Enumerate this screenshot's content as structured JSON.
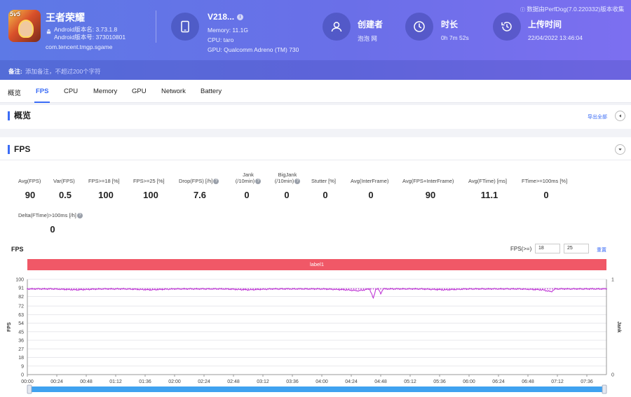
{
  "app": {
    "name": "王者荣耀",
    "version_name": "Android版本名: 3.73.1.8",
    "version_code": "Android版本号: 373010801",
    "package": "com.tencent.tmgp.sgame",
    "icon_badge": "5v5"
  },
  "device": {
    "name": "V218...",
    "memory": "Memory: 11.1G",
    "cpu": "CPU: taro",
    "gpu": "GPU: Qualcomm Adreno (TM) 730"
  },
  "creator": {
    "title": "创建者",
    "value": "泡泡 网"
  },
  "duration": {
    "title": "时长",
    "value": "0h 7m 52s"
  },
  "upload": {
    "title": "上传时间",
    "value": "22/04/2022 13:46:04"
  },
  "source_note": "数据由PerfDog(7.0.220332)版本收集",
  "note": {
    "label": "备注:",
    "placeholder": "添加备注，不超过200个字符"
  },
  "tabs": [
    {
      "label": "概览"
    },
    {
      "label": "FPS"
    },
    {
      "label": "CPU"
    },
    {
      "label": "Memory"
    },
    {
      "label": "GPU"
    },
    {
      "label": "Network"
    },
    {
      "label": "Battery"
    }
  ],
  "active_tab": "FPS",
  "overview": {
    "title": "概览",
    "export": "导出全部"
  },
  "fps_section": {
    "title": "FPS",
    "metrics": [
      {
        "label": "Avg(FPS)",
        "value": "90"
      },
      {
        "label": "Var(FPS)",
        "value": "0.5"
      },
      {
        "label": "FPS>=18 [%]",
        "value": "100"
      },
      {
        "label": "FPS>=25 [%]",
        "value": "100"
      },
      {
        "label": "Drop(FPS) [/h]",
        "value": "7.6"
      },
      {
        "label": "Jank\n(/10min)",
        "value": "0"
      },
      {
        "label": "BigJank\n(/10min)",
        "value": "0"
      },
      {
        "label": "Stutter [%]",
        "value": "0"
      },
      {
        "label": "Avg(InterFrame)",
        "value": "0"
      },
      {
        "label": "Avg(FPS+InterFrame)",
        "value": "90"
      },
      {
        "label": "Avg(FTime) [ms]",
        "value": "11.1"
      },
      {
        "label": "FTime>=100ms [%]",
        "value": "0"
      },
      {
        "label": "Delta(FTime)>100ms [/h]",
        "value": "0"
      }
    ]
  },
  "chart_header": {
    "title": "FPS",
    "threshold_label": "FPS(>=)",
    "threshold_1": "18",
    "threshold_2": "25",
    "reset": "重置",
    "label_band": "label1"
  },
  "chart_data": {
    "type": "line",
    "ylabel": "FPS",
    "y2label": "Jank",
    "ylim": [
      0,
      100
    ],
    "y_ticks": [
      0,
      9,
      18,
      27,
      36,
      45,
      54,
      63,
      72,
      82,
      91,
      100
    ],
    "y2lim": [
      0,
      1
    ],
    "y2_ticks": [
      0,
      1
    ],
    "x_ticks": [
      "00:00",
      "00:24",
      "00:48",
      "01:12",
      "01:36",
      "02:00",
      "02:24",
      "02:48",
      "03:12",
      "03:36",
      "04:00",
      "04:24",
      "04:48",
      "05:12",
      "05:36",
      "06:00",
      "06:24",
      "06:48",
      "07:12",
      "07:36"
    ],
    "x_range_seconds": [
      0,
      472
    ],
    "series": [
      {
        "color": "#c03ad6",
        "baseline": 90,
        "points": [
          [
            0,
            90
          ],
          [
            20,
            90
          ],
          [
            40,
            89
          ],
          [
            60,
            90
          ],
          [
            80,
            90
          ],
          [
            100,
            89
          ],
          [
            120,
            90
          ],
          [
            140,
            90
          ],
          [
            160,
            90
          ],
          [
            180,
            89
          ],
          [
            200,
            90
          ],
          [
            220,
            90
          ],
          [
            240,
            90
          ],
          [
            260,
            89
          ],
          [
            270,
            88
          ],
          [
            279,
            90
          ],
          [
            282,
            80
          ],
          [
            284,
            90
          ],
          [
            286,
            90
          ],
          [
            288,
            85
          ],
          [
            290,
            90
          ],
          [
            300,
            90
          ],
          [
            320,
            90
          ],
          [
            340,
            89
          ],
          [
            360,
            90
          ],
          [
            380,
            90
          ],
          [
            400,
            90
          ],
          [
            420,
            89
          ],
          [
            427,
            87
          ],
          [
            430,
            90
          ],
          [
            450,
            90
          ],
          [
            472,
            90
          ]
        ]
      }
    ]
  },
  "colors": {
    "header_start": "#5d79e6",
    "header_end": "#7c6ff0",
    "accent": "#3b6cf6",
    "label_band": "#f05867",
    "line": "#c03ad6",
    "scroll": "#3fa2f0"
  },
  "icons": [
    "android-icon",
    "phone-icon",
    "info-icon",
    "user-icon",
    "clock-icon",
    "history-icon",
    "chevron-left-icon",
    "chevron-down-icon",
    "question-icon"
  ]
}
